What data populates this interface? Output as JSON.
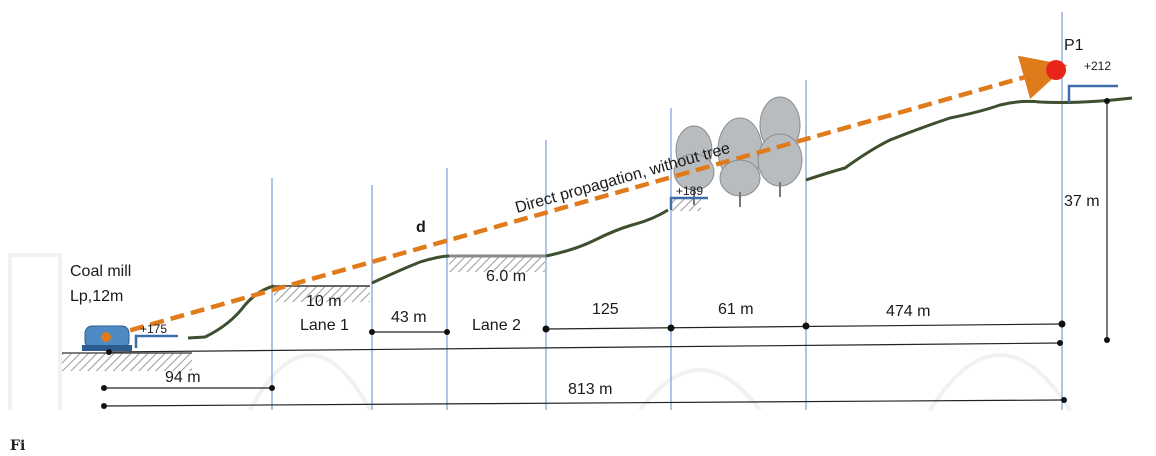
{
  "diagram": {
    "source_label": {
      "line1": "Coal mill",
      "line2": "Lp,12m"
    },
    "receiver_label": "P1",
    "elevations": {
      "source": "+175",
      "mid": "+189",
      "receiver": "+212"
    },
    "path_label": "Direct propagation, without tree",
    "distance_symbol": "d",
    "height_label": "37 m",
    "segments": {
      "s1": "10 m",
      "s2": "43 m",
      "s3": "6.0 m",
      "s4": "125",
      "s5": "61 m",
      "s6": "474 m",
      "first": "94 m",
      "total": "813 m"
    },
    "lanes": {
      "lane1": "Lane 1",
      "lane2": "Lane 2"
    },
    "caption": "Fi"
  },
  "colors": {
    "path": "#e07b1c",
    "terrain": "#3d4f2e",
    "guide": "#7fa6d8",
    "receiver": "#e8261b",
    "marker": "#3e6ea8",
    "equipment": "#4e8ac4"
  }
}
